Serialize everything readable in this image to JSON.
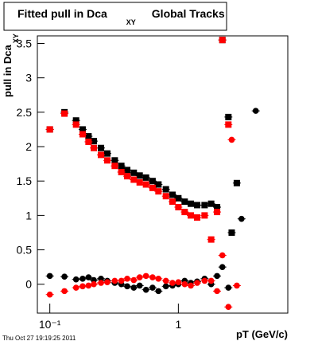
{
  "chart_data": {
    "type": "scatter",
    "title": "Fitted pull in Dca",
    "title_subscript": "XY",
    "title_suffix": "Global Tracks",
    "ylabel": "pull in Dca",
    "ylabel_subscript": "XY",
    "xlabel": "pT (GeV/c)",
    "xscale": "log",
    "xlim": [
      0.08,
      7.1
    ],
    "xticks": [
      {
        "value": 0.1,
        "label": "10⁻¹"
      },
      1
    ],
    "ylim": [
      -0.42,
      3.61
    ],
    "yticks": [
      0,
      0.5,
      1,
      1.5,
      2,
      2.5,
      3,
      3.5
    ],
    "grid": false,
    "x": [
      0.1,
      0.13,
      0.16,
      0.18,
      0.2,
      0.22,
      0.25,
      0.28,
      0.32,
      0.36,
      0.4,
      0.45,
      0.5,
      0.56,
      0.63,
      0.7,
      0.8,
      0.9,
      1.0,
      1.12,
      1.25,
      1.4,
      1.6,
      1.8,
      2.0,
      2.2,
      2.45,
      2.6,
      2.85,
      3.1,
      4.0
    ],
    "series": [
      {
        "marker": "square",
        "color": "#000000",
        "values": [
          2.25,
          2.5,
          2.38,
          2.25,
          2.15,
          2.08,
          1.98,
          1.9,
          1.8,
          1.72,
          1.66,
          1.62,
          1.58,
          1.55,
          1.5,
          1.45,
          1.38,
          1.3,
          1.25,
          1.2,
          1.17,
          1.15,
          1.15,
          1.17,
          1.12,
          3.55,
          2.43,
          0.75,
          1.47,
          null,
          null
        ]
      },
      {
        "marker": "square",
        "color": "#ff0000",
        "values": [
          2.25,
          2.48,
          2.32,
          2.18,
          2.07,
          1.98,
          1.88,
          1.8,
          1.72,
          1.63,
          1.57,
          1.52,
          1.48,
          1.45,
          1.4,
          1.35,
          1.28,
          1.2,
          1.12,
          1.05,
          1.0,
          0.97,
          1.0,
          0.65,
          1.05,
          3.55,
          2.32,
          null,
          null,
          null,
          null
        ]
      },
      {
        "marker": "circle",
        "color": "#000000",
        "values": [
          0.12,
          0.11,
          0.07,
          0.08,
          0.1,
          0.06,
          0.08,
          0.05,
          0.02,
          0.0,
          -0.03,
          -0.05,
          -0.02,
          -0.08,
          -0.05,
          -0.1,
          -0.03,
          -0.02,
          0.0,
          0.05,
          0.02,
          0.04,
          0.08,
          0.0,
          0.12,
          0.25,
          -0.05,
          null,
          null,
          0.95,
          2.52
        ]
      },
      {
        "marker": "circle",
        "color": "#ff0000",
        "values": [
          -0.15,
          -0.1,
          -0.05,
          -0.03,
          -0.02,
          0.0,
          0.02,
          0.03,
          0.05,
          0.05,
          0.08,
          0.06,
          0.1,
          0.12,
          0.1,
          0.08,
          0.05,
          0.02,
          0.03,
          0.0,
          -0.02,
          0.02,
          0.05,
          0.05,
          -0.1,
          0.42,
          -0.33,
          2.1,
          -0.02,
          null,
          null
        ]
      }
    ]
  },
  "footer": "Thu Oct 27 19:19:25 2011"
}
